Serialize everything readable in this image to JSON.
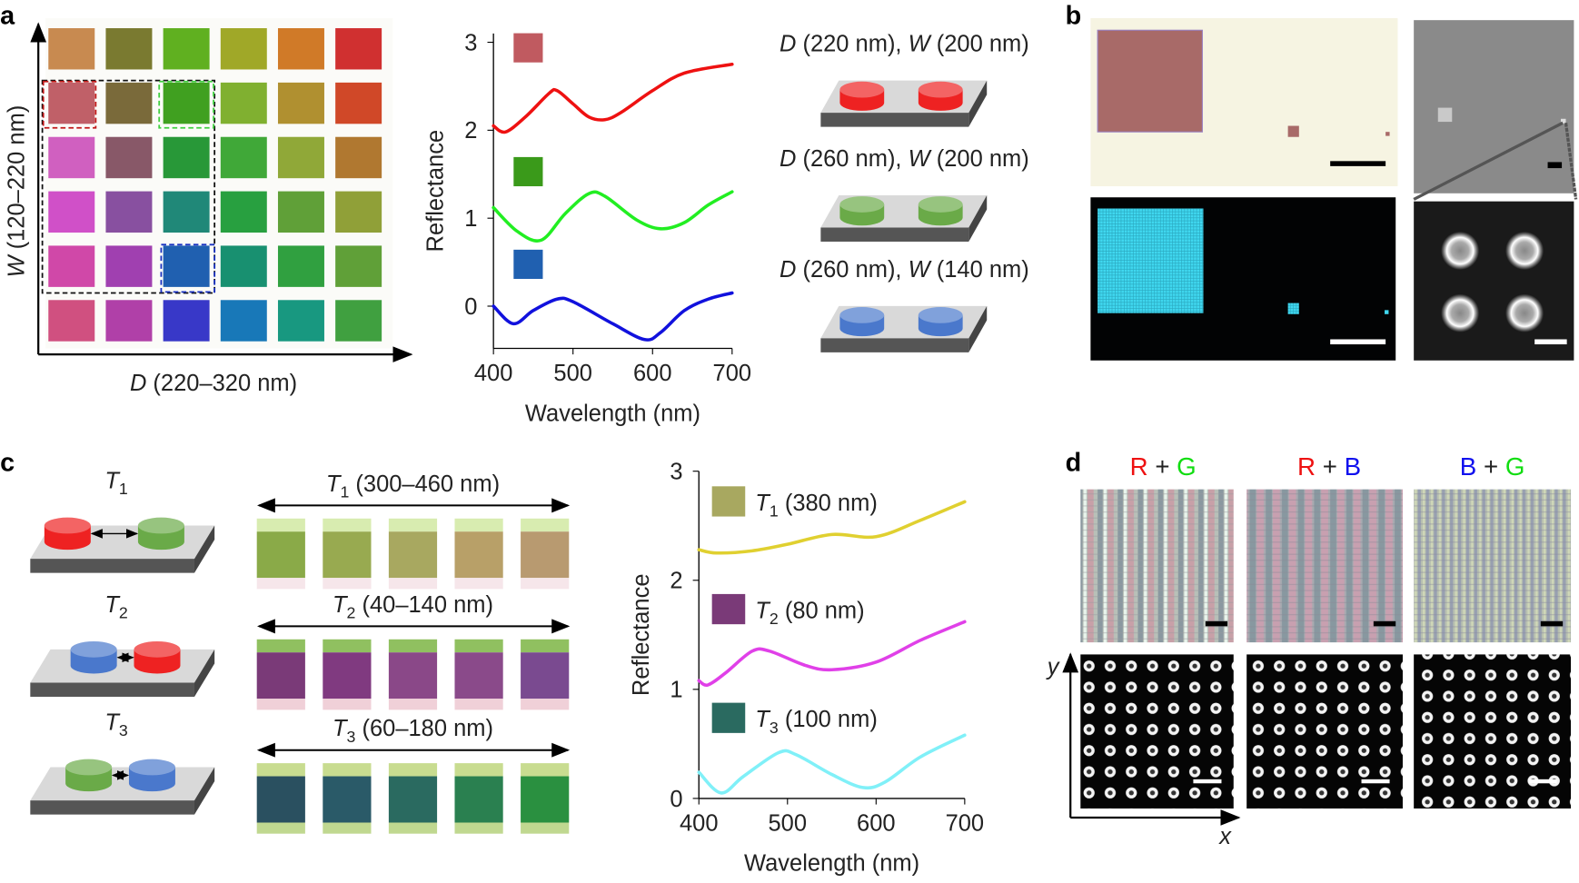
{
  "panel_labels": {
    "a": "a",
    "b": "b",
    "c": "c",
    "d": "d"
  },
  "panel_a": {
    "x_axis": {
      "italic": "D",
      "rest": " (220–320 nm)"
    },
    "y_axis": {
      "italic": "W",
      "rest": " (120–220 nm)"
    },
    "swatch_grid": [
      [
        "#c88a50",
        "#7a7a30",
        "#60b020",
        "#a0a828",
        "#d07a28",
        "#d03030"
      ],
      [
        "#c06068",
        "#7a6a3a",
        "#40a020",
        "#80b030",
        "#b09030",
        "#d04828"
      ],
      [
        "#d060c0",
        "#885868",
        "#289838",
        "#40a838",
        "#90a838",
        "#b07830"
      ],
      [
        "#d050c8",
        "#8850a0",
        "#208878",
        "#28a040",
        "#60a038",
        "#90a038"
      ],
      [
        "#d048a8",
        "#a040b0",
        "#2060b0",
        "#189070",
        "#30a040",
        "#60a038"
      ],
      [
        "#d05080",
        "#b040a8",
        "#3838c8",
        "#1878b8",
        "#189880",
        "#40a040"
      ]
    ],
    "structures": [
      {
        "d": "D",
        "d_val": " (220 nm), ",
        "w": "W",
        "w_val": " (200 nm)",
        "pillar_color": "#ee2222"
      },
      {
        "d": "D",
        "d_val": " (260 nm), ",
        "w": "W",
        "w_val": " (200 nm)",
        "pillar_color": "#6aaa48"
      },
      {
        "d": "D",
        "d_val": " (260 nm), ",
        "w": "W",
        "w_val": " (140 nm)",
        "pillar_color": "#4a78cc"
      }
    ]
  },
  "panel_b": {
    "bright_field_bg": "#f6f4e2",
    "bright_field_square": "#a86a68",
    "dark_field_square": "#40d8f0",
    "sem_bg": "#8a8a8a"
  },
  "panel_c": {
    "schematics": [
      {
        "t": "T",
        "sub": "1",
        "left": "#ee2222",
        "right": "#6aaa48"
      },
      {
        "t": "T",
        "sub": "2",
        "left": "#4a78cc",
        "right": "#ee2222"
      },
      {
        "t": "T",
        "sub": "3",
        "left": "#6aaa48",
        "right": "#4a78cc"
      }
    ],
    "ranges": [
      {
        "t": "T",
        "sub": "1",
        "rest": " (300–460 nm)",
        "top": "#d8ecb0",
        "bottom": "#f6e6ea",
        "colors": [
          "#8aaa48",
          "#98aa50",
          "#a8a860",
          "#b8a068",
          "#b89a70"
        ]
      },
      {
        "t": "T",
        "sub": "2",
        "rest": " (40–140 nm)",
        "top": "#90c060",
        "bottom": "#f0d0d8",
        "colors": [
          "#7a3a78",
          "#803a80",
          "#8a4888",
          "#8a4a8a",
          "#7a4a90"
        ]
      },
      {
        "t": "T",
        "sub": "3",
        "rest": " (60–180 nm)",
        "top": "#c8dc90",
        "bottom": "#c0d890",
        "colors": [
          "#2a5060",
          "#2a5a68",
          "#2a6a60",
          "#2a8050",
          "#2a9040"
        ]
      }
    ]
  },
  "panel_d": {
    "titles": [
      [
        {
          "text": "R",
          "color": "#ee1111"
        },
        {
          "text": " + ",
          "color": "#222222"
        },
        {
          "text": "G",
          "color": "#11dd11"
        }
      ],
      [
        {
          "text": "R",
          "color": "#ee1111"
        },
        {
          "text": " + ",
          "color": "#222222"
        },
        {
          "text": "B",
          "color": "#1111ee"
        }
      ],
      [
        {
          "text": "B",
          "color": "#1111ee"
        },
        {
          "text": " + ",
          "color": "#222222"
        },
        {
          "text": "G",
          "color": "#11dd11"
        }
      ]
    ],
    "axis_x": "x",
    "axis_y": "y"
  },
  "chart_data": [
    {
      "type": "line",
      "panel": "a",
      "xlabel": "Wavelength (nm)",
      "ylabel": "Reflectance",
      "xlim": [
        400,
        700
      ],
      "ylim": [
        -0.48,
        3.1
      ],
      "xticks": [
        400,
        500,
        600,
        700
      ],
      "yticks": [
        0,
        1,
        2,
        3
      ],
      "grid": false,
      "series": [
        {
          "color": "#ee1111",
          "swatch": "#c05a60",
          "x": [
            400,
            415,
            440,
            470,
            480,
            500,
            520,
            540,
            560,
            600,
            640,
            700
          ],
          "y": [
            2.05,
            1.98,
            2.15,
            2.42,
            2.45,
            2.3,
            2.15,
            2.12,
            2.2,
            2.45,
            2.65,
            2.75
          ]
        },
        {
          "color": "#22ee22",
          "swatch": "#3a9a1a",
          "x": [
            400,
            430,
            460,
            490,
            520,
            540,
            580,
            610,
            640,
            670,
            700
          ],
          "y": [
            1.12,
            0.85,
            0.75,
            1.05,
            1.28,
            1.25,
            0.98,
            0.88,
            0.95,
            1.15,
            1.3
          ]
        },
        {
          "color": "#1111dd",
          "swatch": "#2060b0",
          "x": [
            400,
            425,
            450,
            480,
            500,
            550,
            590,
            610,
            640,
            670,
            700
          ],
          "y": [
            0.0,
            -0.2,
            -0.05,
            0.08,
            0.05,
            -0.2,
            -0.38,
            -0.3,
            -0.05,
            0.08,
            0.15
          ]
        }
      ]
    },
    {
      "type": "line",
      "panel": "c",
      "xlabel": "Wavelength (nm)",
      "ylabel": "Reflectance",
      "xlim": [
        400,
        700
      ],
      "ylim": [
        0,
        3
      ],
      "xticks": [
        400,
        500,
        600,
        700
      ],
      "yticks": [
        0,
        1,
        2,
        3
      ],
      "grid": false,
      "series": [
        {
          "legend_t": "T",
          "legend_sub": "1",
          "legend_rest": " (380 nm)",
          "color": "#e0d030",
          "swatch": "#a8a860",
          "x": [
            400,
            420,
            460,
            500,
            550,
            600,
            650,
            700
          ],
          "y": [
            2.28,
            2.25,
            2.27,
            2.33,
            2.42,
            2.4,
            2.55,
            2.72
          ]
        },
        {
          "legend_t": "T",
          "legend_sub": "2",
          "legend_rest": " (80 nm)",
          "color": "#e040e8",
          "swatch": "#7a3a78",
          "x": [
            400,
            410,
            430,
            460,
            480,
            520,
            550,
            600,
            650,
            700
          ],
          "y": [
            1.08,
            1.04,
            1.15,
            1.35,
            1.35,
            1.22,
            1.18,
            1.25,
            1.45,
            1.62
          ]
        },
        {
          "legend_t": "T",
          "legend_sub": "3",
          "legend_rest": " (100 nm)",
          "color": "#80f0f8",
          "swatch": "#2a6a60",
          "x": [
            400,
            425,
            450,
            490,
            510,
            550,
            585,
            610,
            650,
            700
          ],
          "y": [
            0.24,
            0.05,
            0.2,
            0.42,
            0.4,
            0.22,
            0.1,
            0.15,
            0.38,
            0.58
          ]
        }
      ]
    }
  ]
}
